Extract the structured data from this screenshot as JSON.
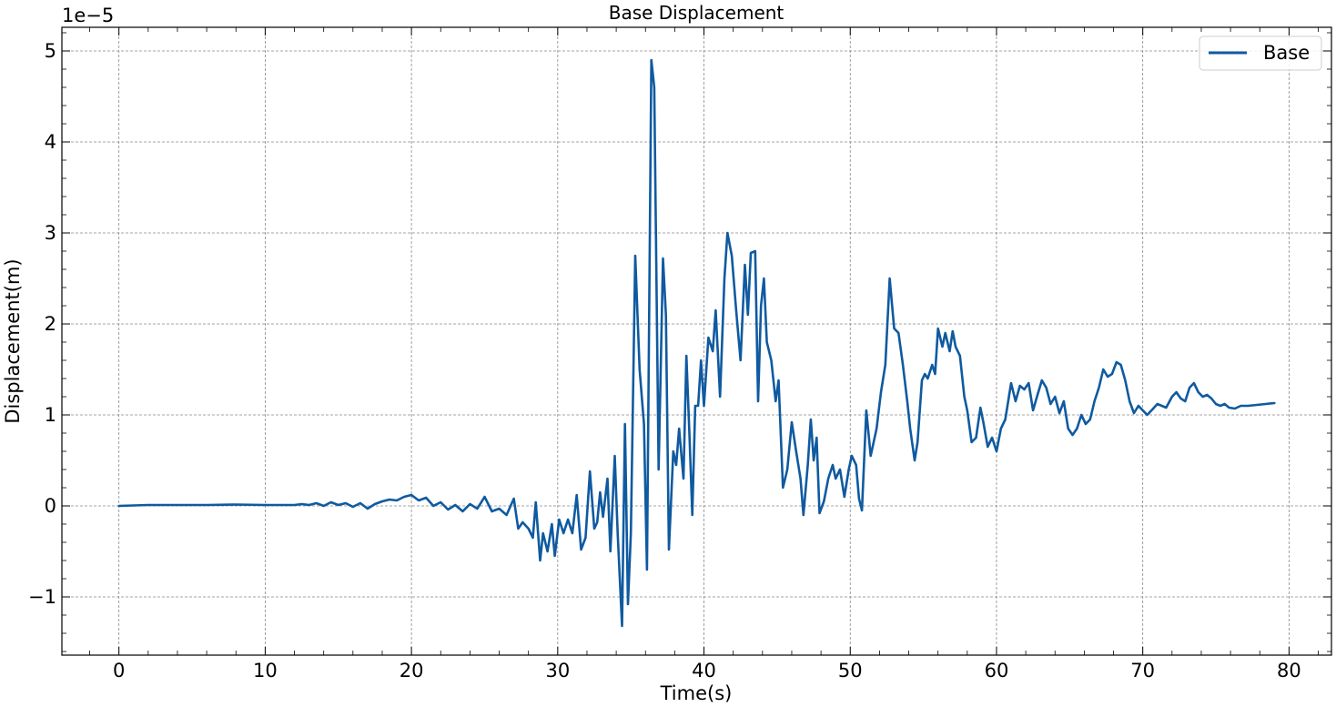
{
  "chart_data": {
    "type": "line",
    "title": "Base Displacement",
    "xlabel": "Time(s)",
    "ylabel": "Displacement(m)",
    "y_offset_label": "1e−5",
    "y_scale": 1e-05,
    "xlim": [
      -3.9,
      82.9
    ],
    "ylim": [
      -1.64,
      5.26
    ],
    "x_ticks": [
      0,
      10,
      20,
      30,
      40,
      50,
      60,
      70,
      80
    ],
    "x_tick_labels": [
      "0",
      "10",
      "20",
      "30",
      "40",
      "50",
      "60",
      "70",
      "80"
    ],
    "y_ticks": [
      -1,
      0,
      1,
      2,
      3,
      4,
      5
    ],
    "y_tick_labels": [
      "−1",
      "0",
      "1",
      "2",
      "3",
      "4",
      "5"
    ],
    "grid": true,
    "legend_position": "upper-right",
    "colors": {
      "series": "#0f5aa0",
      "grid": "#888888"
    },
    "series": [
      {
        "name": "Base",
        "points": [
          [
            0.0,
            0.0
          ],
          [
            2.0,
            0.01
          ],
          [
            4.0,
            0.01
          ],
          [
            6.0,
            0.01
          ],
          [
            8.0,
            0.015
          ],
          [
            10.0,
            0.01
          ],
          [
            12.0,
            0.01
          ],
          [
            12.5,
            0.02
          ],
          [
            13.0,
            0.01
          ],
          [
            13.5,
            0.03
          ],
          [
            14.0,
            0.0
          ],
          [
            14.5,
            0.04
          ],
          [
            15.0,
            0.01
          ],
          [
            15.5,
            0.03
          ],
          [
            16.0,
            -0.01
          ],
          [
            16.5,
            0.03
          ],
          [
            17.0,
            -0.03
          ],
          [
            17.5,
            0.02
          ],
          [
            18.0,
            0.05
          ],
          [
            18.5,
            0.07
          ],
          [
            19.0,
            0.06
          ],
          [
            19.5,
            0.1
          ],
          [
            20.0,
            0.12
          ],
          [
            20.5,
            0.06
          ],
          [
            21.0,
            0.09
          ],
          [
            21.5,
            0.0
          ],
          [
            22.0,
            0.04
          ],
          [
            22.5,
            -0.04
          ],
          [
            23.0,
            0.01
          ],
          [
            23.5,
            -0.06
          ],
          [
            24.0,
            0.02
          ],
          [
            24.5,
            -0.03
          ],
          [
            25.0,
            0.1
          ],
          [
            25.5,
            -0.06
          ],
          [
            26.0,
            -0.03
          ],
          [
            26.5,
            -0.1
          ],
          [
            27.0,
            0.08
          ],
          [
            27.3,
            -0.25
          ],
          [
            27.6,
            -0.18
          ],
          [
            28.0,
            -0.25
          ],
          [
            28.3,
            -0.35
          ],
          [
            28.5,
            0.04
          ],
          [
            28.8,
            -0.6
          ],
          [
            29.0,
            -0.3
          ],
          [
            29.3,
            -0.5
          ],
          [
            29.6,
            -0.2
          ],
          [
            29.8,
            -0.55
          ],
          [
            30.1,
            -0.15
          ],
          [
            30.4,
            -0.3
          ],
          [
            30.7,
            -0.15
          ],
          [
            31.0,
            -0.3
          ],
          [
            31.3,
            0.12
          ],
          [
            31.6,
            -0.48
          ],
          [
            31.9,
            -0.35
          ],
          [
            32.2,
            0.38
          ],
          [
            32.5,
            -0.25
          ],
          [
            32.7,
            -0.18
          ],
          [
            32.9,
            0.15
          ],
          [
            33.1,
            -0.12
          ],
          [
            33.4,
            0.3
          ],
          [
            33.6,
            -0.5
          ],
          [
            33.9,
            0.55
          ],
          [
            34.1,
            -0.3
          ],
          [
            34.4,
            -1.32
          ],
          [
            34.6,
            0.9
          ],
          [
            34.8,
            -1.08
          ],
          [
            35.0,
            -0.3
          ],
          [
            35.3,
            2.75
          ],
          [
            35.6,
            1.5
          ],
          [
            35.9,
            0.9
          ],
          [
            36.1,
            -0.7
          ],
          [
            36.4,
            4.9
          ],
          [
            36.6,
            4.6
          ],
          [
            36.9,
            0.4
          ],
          [
            37.2,
            2.72
          ],
          [
            37.4,
            2.1
          ],
          [
            37.6,
            -0.48
          ],
          [
            37.9,
            0.6
          ],
          [
            38.1,
            0.45
          ],
          [
            38.3,
            0.85
          ],
          [
            38.6,
            0.3
          ],
          [
            38.8,
            1.65
          ],
          [
            39.0,
            0.8
          ],
          [
            39.2,
            -0.1
          ],
          [
            39.4,
            1.1
          ],
          [
            39.6,
            1.1
          ],
          [
            39.8,
            1.6
          ],
          [
            40.0,
            1.1
          ],
          [
            40.3,
            1.85
          ],
          [
            40.6,
            1.7
          ],
          [
            40.8,
            2.15
          ],
          [
            41.1,
            1.2
          ],
          [
            41.4,
            2.5
          ],
          [
            41.6,
            3.0
          ],
          [
            41.9,
            2.75
          ],
          [
            42.2,
            2.15
          ],
          [
            42.5,
            1.6
          ],
          [
            42.8,
            2.65
          ],
          [
            43.0,
            2.1
          ],
          [
            43.2,
            2.78
          ],
          [
            43.5,
            2.8
          ],
          [
            43.7,
            1.15
          ],
          [
            43.9,
            2.2
          ],
          [
            44.1,
            2.5
          ],
          [
            44.3,
            1.8
          ],
          [
            44.6,
            1.6
          ],
          [
            44.9,
            1.15
          ],
          [
            45.1,
            1.38
          ],
          [
            45.4,
            0.2
          ],
          [
            45.7,
            0.4
          ],
          [
            46.0,
            0.92
          ],
          [
            46.3,
            0.6
          ],
          [
            46.6,
            0.3
          ],
          [
            46.8,
            -0.1
          ],
          [
            47.1,
            0.45
          ],
          [
            47.3,
            0.95
          ],
          [
            47.5,
            0.5
          ],
          [
            47.7,
            0.75
          ],
          [
            47.9,
            -0.08
          ],
          [
            48.2,
            0.05
          ],
          [
            48.5,
            0.3
          ],
          [
            48.8,
            0.45
          ],
          [
            49.0,
            0.3
          ],
          [
            49.3,
            0.4
          ],
          [
            49.6,
            0.1
          ],
          [
            49.9,
            0.4
          ],
          [
            50.1,
            0.55
          ],
          [
            50.4,
            0.45
          ],
          [
            50.6,
            0.08
          ],
          [
            50.8,
            -0.05
          ],
          [
            51.1,
            1.05
          ],
          [
            51.4,
            0.55
          ],
          [
            51.8,
            0.85
          ],
          [
            52.1,
            1.25
          ],
          [
            52.4,
            1.55
          ],
          [
            52.7,
            2.5
          ],
          [
            53.0,
            1.95
          ],
          [
            53.3,
            1.9
          ],
          [
            53.6,
            1.55
          ],
          [
            53.9,
            1.15
          ],
          [
            54.1,
            0.85
          ],
          [
            54.4,
            0.5
          ],
          [
            54.6,
            0.7
          ],
          [
            54.9,
            1.38
          ],
          [
            55.1,
            1.45
          ],
          [
            55.3,
            1.4
          ],
          [
            55.6,
            1.55
          ],
          [
            55.8,
            1.45
          ],
          [
            56.0,
            1.95
          ],
          [
            56.3,
            1.75
          ],
          [
            56.5,
            1.9
          ],
          [
            56.8,
            1.7
          ],
          [
            57.0,
            1.92
          ],
          [
            57.2,
            1.75
          ],
          [
            57.5,
            1.65
          ],
          [
            57.8,
            1.2
          ],
          [
            58.0,
            1.05
          ],
          [
            58.3,
            0.7
          ],
          [
            58.6,
            0.75
          ],
          [
            58.9,
            1.08
          ],
          [
            59.1,
            0.92
          ],
          [
            59.4,
            0.65
          ],
          [
            59.7,
            0.75
          ],
          [
            60.0,
            0.6
          ],
          [
            60.3,
            0.85
          ],
          [
            60.6,
            0.95
          ],
          [
            61.0,
            1.35
          ],
          [
            61.3,
            1.15
          ],
          [
            61.6,
            1.32
          ],
          [
            61.9,
            1.28
          ],
          [
            62.2,
            1.35
          ],
          [
            62.5,
            1.05
          ],
          [
            62.8,
            1.22
          ],
          [
            63.1,
            1.38
          ],
          [
            63.4,
            1.3
          ],
          [
            63.7,
            1.12
          ],
          [
            64.0,
            1.2
          ],
          [
            64.3,
            1.02
          ],
          [
            64.6,
            1.15
          ],
          [
            64.9,
            0.85
          ],
          [
            65.2,
            0.78
          ],
          [
            65.5,
            0.85
          ],
          [
            65.8,
            1.0
          ],
          [
            66.1,
            0.9
          ],
          [
            66.4,
            0.95
          ],
          [
            66.7,
            1.15
          ],
          [
            67.0,
            1.3
          ],
          [
            67.3,
            1.5
          ],
          [
            67.6,
            1.42
          ],
          [
            67.9,
            1.45
          ],
          [
            68.2,
            1.58
          ],
          [
            68.5,
            1.55
          ],
          [
            68.8,
            1.38
          ],
          [
            69.1,
            1.15
          ],
          [
            69.4,
            1.02
          ],
          [
            69.7,
            1.1
          ],
          [
            70.0,
            1.05
          ],
          [
            70.3,
            1.0
          ],
          [
            70.6,
            1.05
          ],
          [
            71.0,
            1.12
          ],
          [
            71.3,
            1.1
          ],
          [
            71.6,
            1.08
          ],
          [
            72.0,
            1.2
          ],
          [
            72.3,
            1.25
          ],
          [
            72.6,
            1.18
          ],
          [
            72.9,
            1.15
          ],
          [
            73.2,
            1.3
          ],
          [
            73.5,
            1.35
          ],
          [
            73.8,
            1.25
          ],
          [
            74.1,
            1.2
          ],
          [
            74.4,
            1.22
          ],
          [
            74.7,
            1.18
          ],
          [
            75.0,
            1.12
          ],
          [
            75.3,
            1.1
          ],
          [
            75.6,
            1.12
          ],
          [
            75.9,
            1.08
          ],
          [
            76.3,
            1.07
          ],
          [
            76.7,
            1.1
          ],
          [
            77.2,
            1.1
          ],
          [
            77.8,
            1.11
          ],
          [
            78.4,
            1.12
          ],
          [
            79.0,
            1.13
          ]
        ]
      }
    ]
  }
}
